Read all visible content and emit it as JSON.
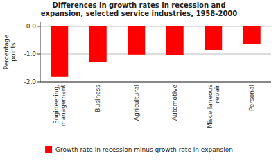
{
  "chart_data": {
    "type": "bar",
    "title": "Differences in growth rates in recession and\nexpansion, selected service industries, 1958-2000",
    "categories": [
      "Engineering,\nmanagement",
      "Business",
      "Agricultural",
      "Automotive",
      "Miscellaneous\nrepair",
      "Personal"
    ],
    "series": [
      {
        "name": "Growth rate in recession minus growth rate in expansion",
        "color": "#FF0000",
        "values": [
          -1.82,
          -1.3,
          -1.02,
          -1.05,
          -0.85,
          -0.65
        ]
      }
    ],
    "ylabel": "Percentage\npoints",
    "ylim": [
      -2.0,
      0.15
    ],
    "yticks": [
      {
        "value": 0.0,
        "label": "0.0"
      },
      {
        "value": -1.0,
        "label": "-1.0"
      },
      {
        "value": -2.0,
        "label": "-2.0"
      }
    ],
    "grid": true,
    "legend": "bottom"
  }
}
